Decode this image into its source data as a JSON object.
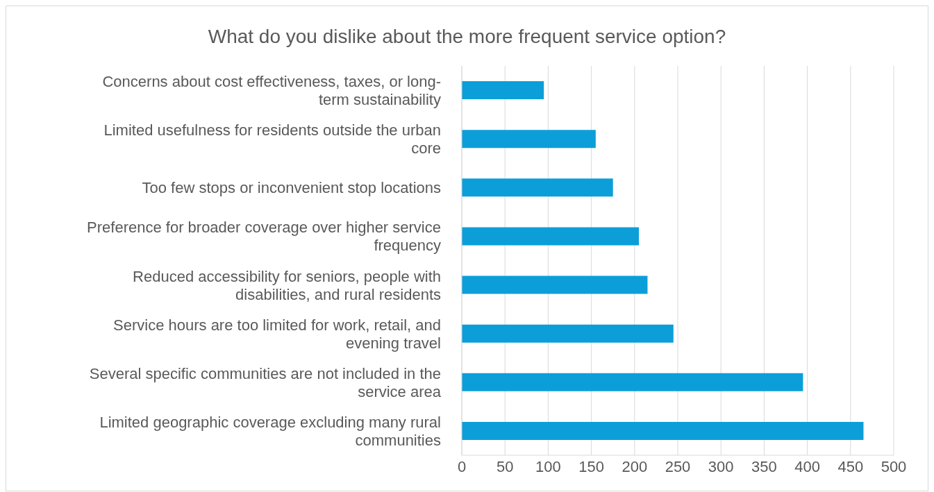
{
  "chart_data": {
    "type": "bar",
    "orientation": "horizontal",
    "title": "What do you dislike about the more frequent service option?",
    "categories": [
      "Concerns about cost effectiveness, taxes, or long-term sustainability",
      "Limited usefulness for residents outside the urban core",
      "Too few stops or inconvenient stop locations",
      "Preference for broader coverage over higher service frequency",
      "Reduced accessibility for seniors, people with disabilities, and rural residents",
      "Service hours are too limited for work, retail, and evening travel",
      "Several specific communities are not included in the service area",
      "Limited geographic coverage excluding many rural communities"
    ],
    "values": [
      95,
      155,
      175,
      205,
      215,
      245,
      395,
      465
    ],
    "color": "#0c9ed9",
    "xlim": [
      0,
      500
    ],
    "xticks": [
      0,
      50,
      100,
      150,
      200,
      250,
      300,
      350,
      400,
      450,
      500
    ],
    "grid": "x"
  }
}
